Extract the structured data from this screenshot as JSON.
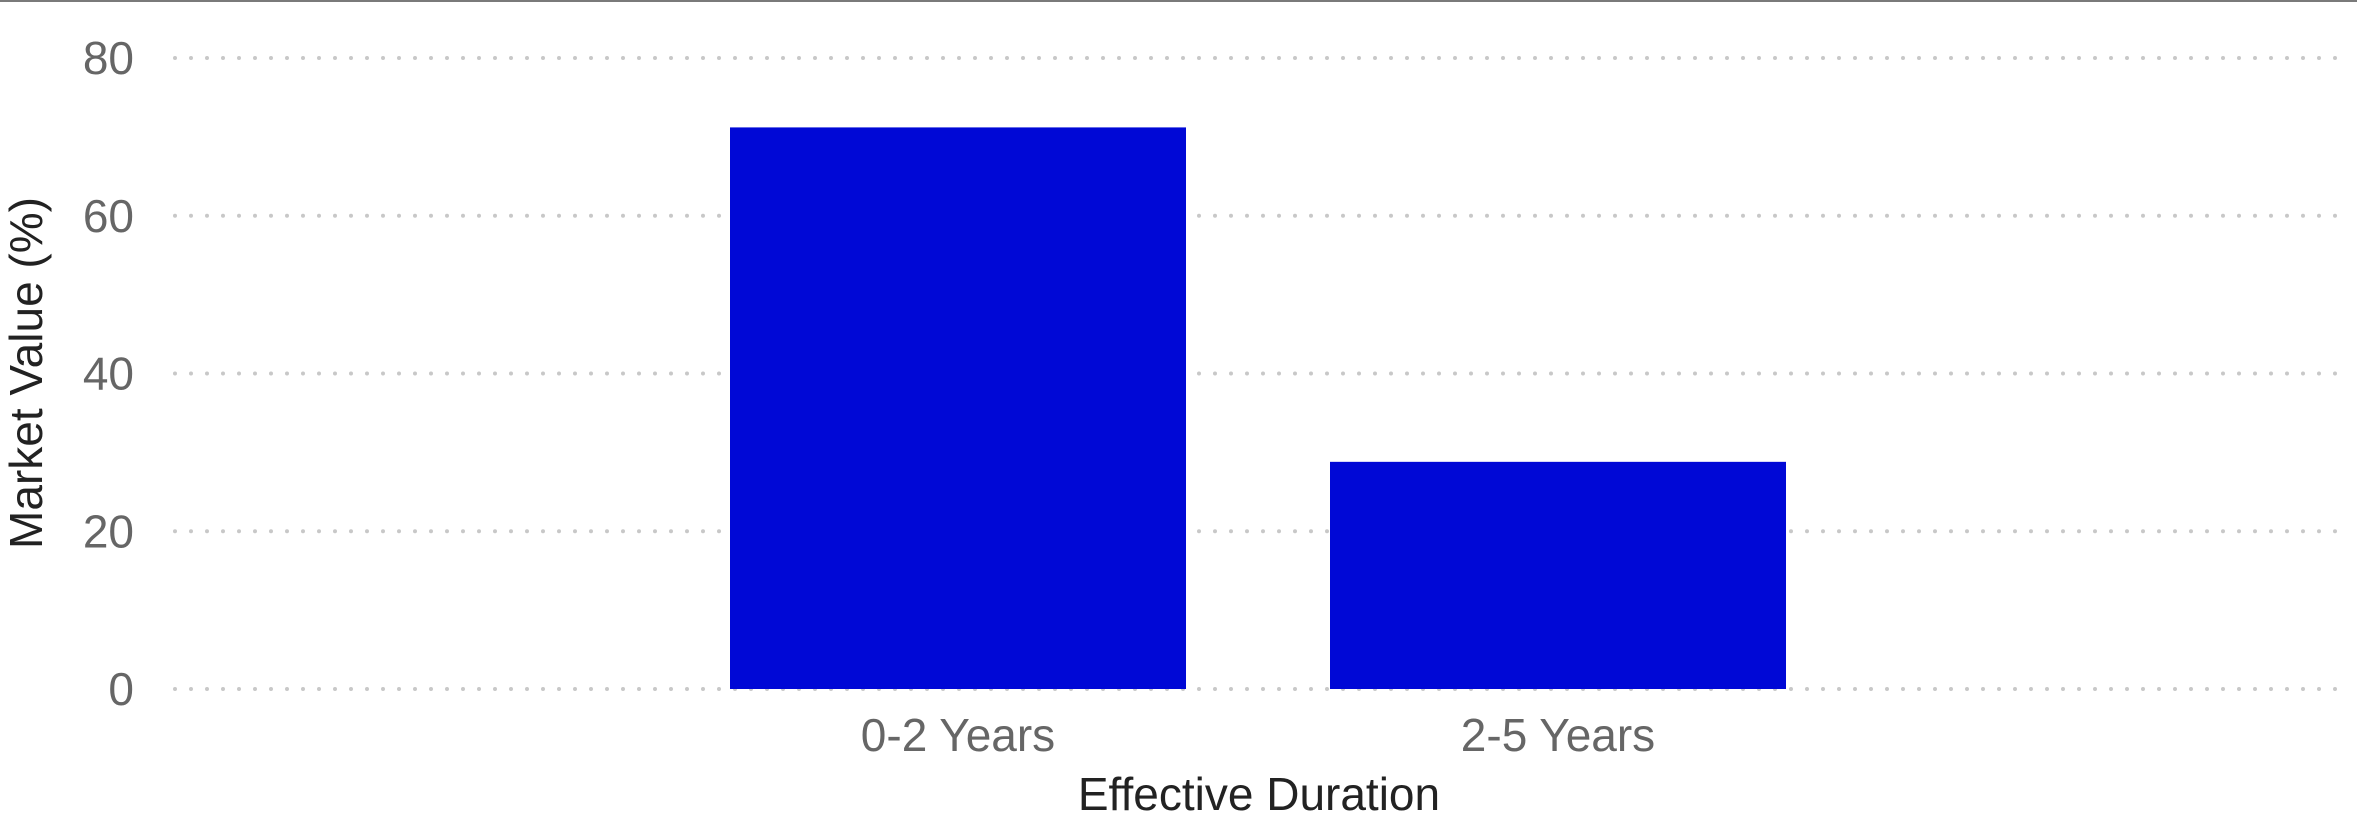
{
  "chart_data": {
    "type": "bar",
    "categories": [
      "0-2 Years",
      "2-5 Years"
    ],
    "values": [
      71.2,
      28.8
    ],
    "xlabel": "Effective Duration",
    "ylabel": "Market Value (%)",
    "ylim": [
      0,
      80
    ],
    "yticks": [
      0,
      20,
      40,
      60,
      80
    ],
    "bar_color": "#0008d6",
    "grid": true,
    "legend": "none"
  }
}
